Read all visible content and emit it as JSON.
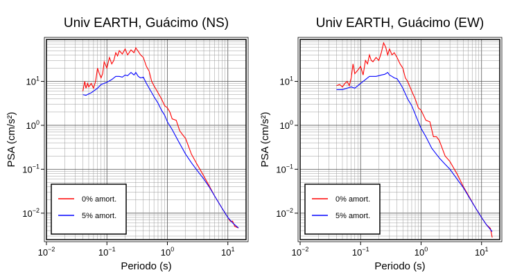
{
  "chart_data": [
    {
      "type": "line",
      "title": "Univ EARTH, Guácimo (NS)",
      "xlabel": "Periodo (s)",
      "ylabel": "PSA (cm/s²)",
      "xscale": "log",
      "yscale": "log",
      "xlim": [
        0.01,
        20
      ],
      "ylim": [
        0.0025,
        90
      ],
      "grid": true,
      "legend_position": "bottom-left",
      "xticks": [
        0.01,
        0.1,
        1,
        10
      ],
      "yticks": [
        0.01,
        0.1,
        1,
        10
      ],
      "series": [
        {
          "name": "0% amort.",
          "color": "#ff0000",
          "x": [
            0.04,
            0.043,
            0.045,
            0.048,
            0.05,
            0.055,
            0.06,
            0.065,
            0.07,
            0.075,
            0.08,
            0.085,
            0.09,
            0.1,
            0.11,
            0.12,
            0.13,
            0.14,
            0.15,
            0.16,
            0.18,
            0.2,
            0.22,
            0.25,
            0.28,
            0.3,
            0.33,
            0.36,
            0.4,
            0.45,
            0.5,
            0.55,
            0.6,
            0.7,
            0.8,
            0.9,
            1.0,
            1.1,
            1.2,
            1.4,
            1.6,
            1.8,
            2.0,
            2.5,
            3.0,
            4.0,
            5.0,
            6.0,
            8.0,
            10.0,
            11.0,
            12.0,
            13.0,
            15.0
          ],
          "y": [
            6,
            10,
            7,
            9,
            7.5,
            9,
            7,
            10,
            20,
            15,
            12,
            15,
            28,
            20,
            35,
            25,
            30,
            45,
            38,
            50,
            42,
            55,
            40,
            52,
            45,
            58,
            48,
            40,
            35,
            22,
            17,
            10,
            8,
            5.5,
            4,
            2.8,
            2.5,
            2,
            1.4,
            1.3,
            0.75,
            0.6,
            0.5,
            0.22,
            0.14,
            0.07,
            0.04,
            0.025,
            0.013,
            0.008,
            0.0065,
            0.0066,
            0.005,
            0.0046
          ]
        },
        {
          "name": "5% amort.",
          "color": "#0000ff",
          "x": [
            0.04,
            0.045,
            0.05,
            0.055,
            0.06,
            0.07,
            0.08,
            0.09,
            0.1,
            0.12,
            0.14,
            0.16,
            0.18,
            0.2,
            0.22,
            0.25,
            0.28,
            0.3,
            0.33,
            0.36,
            0.4,
            0.45,
            0.5,
            0.6,
            0.7,
            0.8,
            0.9,
            1.0,
            1.2,
            1.5,
            2.0,
            2.5,
            3.0,
            4.0,
            5.0,
            6.0,
            8.0,
            10.0,
            12.0,
            15.0
          ],
          "y": [
            5.0,
            4.8,
            5.2,
            5.5,
            6.0,
            7.0,
            8.5,
            9.0,
            9.5,
            11,
            13,
            13,
            12.5,
            14,
            13.5,
            16,
            14,
            16,
            13,
            12,
            12.5,
            9,
            7,
            4.5,
            3.2,
            2.2,
            1.7,
            1.2,
            0.8,
            0.45,
            0.22,
            0.14,
            0.1,
            0.06,
            0.038,
            0.025,
            0.013,
            0.008,
            0.006,
            0.0046
          ]
        }
      ]
    },
    {
      "type": "line",
      "title": "Univ EARTH, Guácimo (EW)",
      "xlabel": "Periodo (s)",
      "ylabel": "PSA (cm/s²)",
      "xscale": "log",
      "yscale": "log",
      "xlim": [
        0.01,
        20
      ],
      "ylim": [
        0.0025,
        90
      ],
      "grid": true,
      "legend_position": "bottom-left",
      "xticks": [
        0.01,
        0.1,
        1,
        10
      ],
      "yticks": [
        0.01,
        0.1,
        1,
        10
      ],
      "series": [
        {
          "name": "0% amort.",
          "color": "#ff0000",
          "x": [
            0.04,
            0.045,
            0.05,
            0.055,
            0.06,
            0.065,
            0.07,
            0.075,
            0.08,
            0.09,
            0.1,
            0.11,
            0.12,
            0.13,
            0.14,
            0.15,
            0.16,
            0.18,
            0.2,
            0.22,
            0.24,
            0.26,
            0.28,
            0.3,
            0.33,
            0.36,
            0.4,
            0.45,
            0.5,
            0.55,
            0.6,
            0.7,
            0.8,
            0.9,
            1.0,
            1.2,
            1.4,
            1.6,
            1.8,
            2.0,
            2.5,
            3.0,
            4.0,
            5.0,
            6.0,
            8.0,
            10.0,
            12.0,
            14.0,
            15.0
          ],
          "y": [
            8,
            8.5,
            7.5,
            9,
            10,
            8,
            12,
            25,
            15,
            18,
            22,
            14,
            30,
            25,
            40,
            30,
            28,
            35,
            30,
            45,
            75,
            60,
            40,
            55,
            40,
            45,
            35,
            25,
            20,
            12,
            10,
            6,
            4,
            2.5,
            2.2,
            1.3,
            1.2,
            0.55,
            0.55,
            0.45,
            0.2,
            0.15,
            0.075,
            0.04,
            0.026,
            0.013,
            0.008,
            0.0055,
            0.0045,
            0.0028
          ]
        },
        {
          "name": "5% amort.",
          "color": "#0000ff",
          "x": [
            0.04,
            0.05,
            0.06,
            0.07,
            0.08,
            0.09,
            0.1,
            0.12,
            0.14,
            0.16,
            0.18,
            0.2,
            0.22,
            0.25,
            0.28,
            0.3,
            0.33,
            0.36,
            0.4,
            0.45,
            0.5,
            0.6,
            0.7,
            0.8,
            0.9,
            1.0,
            1.2,
            1.5,
            2.0,
            2.5,
            3.0,
            4.0,
            5.0,
            6.0,
            8.0,
            10.0,
            12.0,
            15.0
          ],
          "y": [
            6.5,
            6.5,
            7,
            7.5,
            7,
            8,
            9,
            11,
            13,
            13,
            13,
            13.5,
            14,
            14.5,
            16,
            14,
            13,
            12,
            11.5,
            9,
            7,
            4,
            2.8,
            1.8,
            1.2,
            0.85,
            0.55,
            0.3,
            0.18,
            0.13,
            0.1,
            0.058,
            0.038,
            0.025,
            0.013,
            0.008,
            0.0055,
            0.0038
          ]
        }
      ]
    }
  ]
}
